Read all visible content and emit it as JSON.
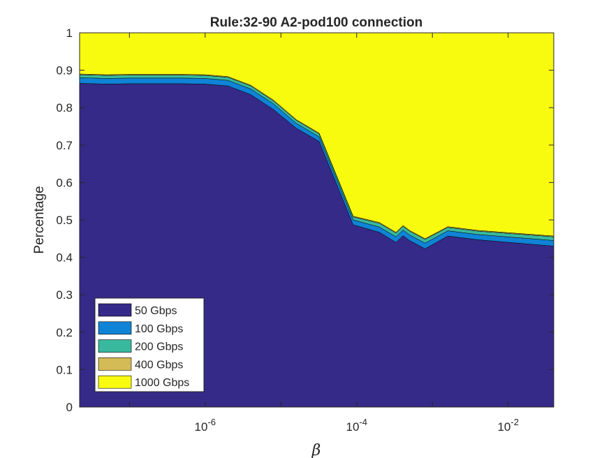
{
  "chart_data": {
    "type": "area",
    "title": "Rule:32-90 A2-pod100 connection",
    "xlabel": "β",
    "ylabel": "Percentage",
    "x_scale": "log",
    "xlim": [
      2.2e-08,
      0.04
    ],
    "ylim": [
      0,
      1
    ],
    "y_ticks": [
      "0",
      "0.1",
      "0.2",
      "0.3",
      "0.4",
      "0.5",
      "0.6",
      "0.7",
      "0.8",
      "0.9",
      "1"
    ],
    "x_ticks": [
      {
        "value": 1e-06,
        "base": "10",
        "exp": "-6"
      },
      {
        "value": 0.0001,
        "base": "10",
        "exp": "-4"
      },
      {
        "value": 0.01,
        "base": "10",
        "exp": "-2"
      }
    ],
    "grid": false,
    "legend_position": "bottom-left",
    "x": [
      2.2e-08,
      5e-08,
      1e-07,
      2e-07,
      5e-07,
      1e-06,
      2e-06,
      4e-06,
      8e-06,
      1.6e-05,
      3.2e-05,
      9e-05,
      0.0002,
      0.00033,
      0.00041,
      0.0005,
      0.0008,
      0.0016,
      0.004,
      0.04
    ],
    "series": [
      {
        "name": "50 Gbps",
        "color": "#352a87",
        "values": [
          0.865,
          0.863,
          0.864,
          0.864,
          0.864,
          0.863,
          0.858,
          0.835,
          0.795,
          0.745,
          0.71,
          0.487,
          0.467,
          0.44,
          0.458,
          0.445,
          0.423,
          0.457,
          0.447,
          0.43
        ]
      },
      {
        "name": "100 Gbps",
        "color": "#0f83d6",
        "values": [
          0.015,
          0.015,
          0.015,
          0.015,
          0.015,
          0.015,
          0.015,
          0.015,
          0.015,
          0.013,
          0.012,
          0.013,
          0.014,
          0.015,
          0.015,
          0.015,
          0.015,
          0.014,
          0.014,
          0.015
        ]
      },
      {
        "name": "200 Gbps",
        "color": "#38b99e",
        "values": [
          0.008,
          0.008,
          0.008,
          0.008,
          0.008,
          0.008,
          0.008,
          0.008,
          0.008,
          0.008,
          0.008,
          0.008,
          0.01,
          0.01,
          0.01,
          0.01,
          0.01,
          0.009,
          0.009,
          0.01
        ]
      },
      {
        "name": "400 Gbps",
        "color": "#d5bb55",
        "values": [
          0.002,
          0.002,
          0.002,
          0.002,
          0.002,
          0.002,
          0.002,
          0.002,
          0.002,
          0.002,
          0.002,
          0.002,
          0.002,
          0.002,
          0.002,
          0.002,
          0.002,
          0.002,
          0.002,
          0.002
        ]
      },
      {
        "name": "1000 Gbps",
        "color": "#f9fb0e",
        "values": [
          0.11,
          0.112,
          0.111,
          0.111,
          0.111,
          0.112,
          0.117,
          0.14,
          0.18,
          0.232,
          0.268,
          0.49,
          0.507,
          0.533,
          0.515,
          0.528,
          0.55,
          0.518,
          0.528,
          0.543
        ]
      }
    ]
  }
}
